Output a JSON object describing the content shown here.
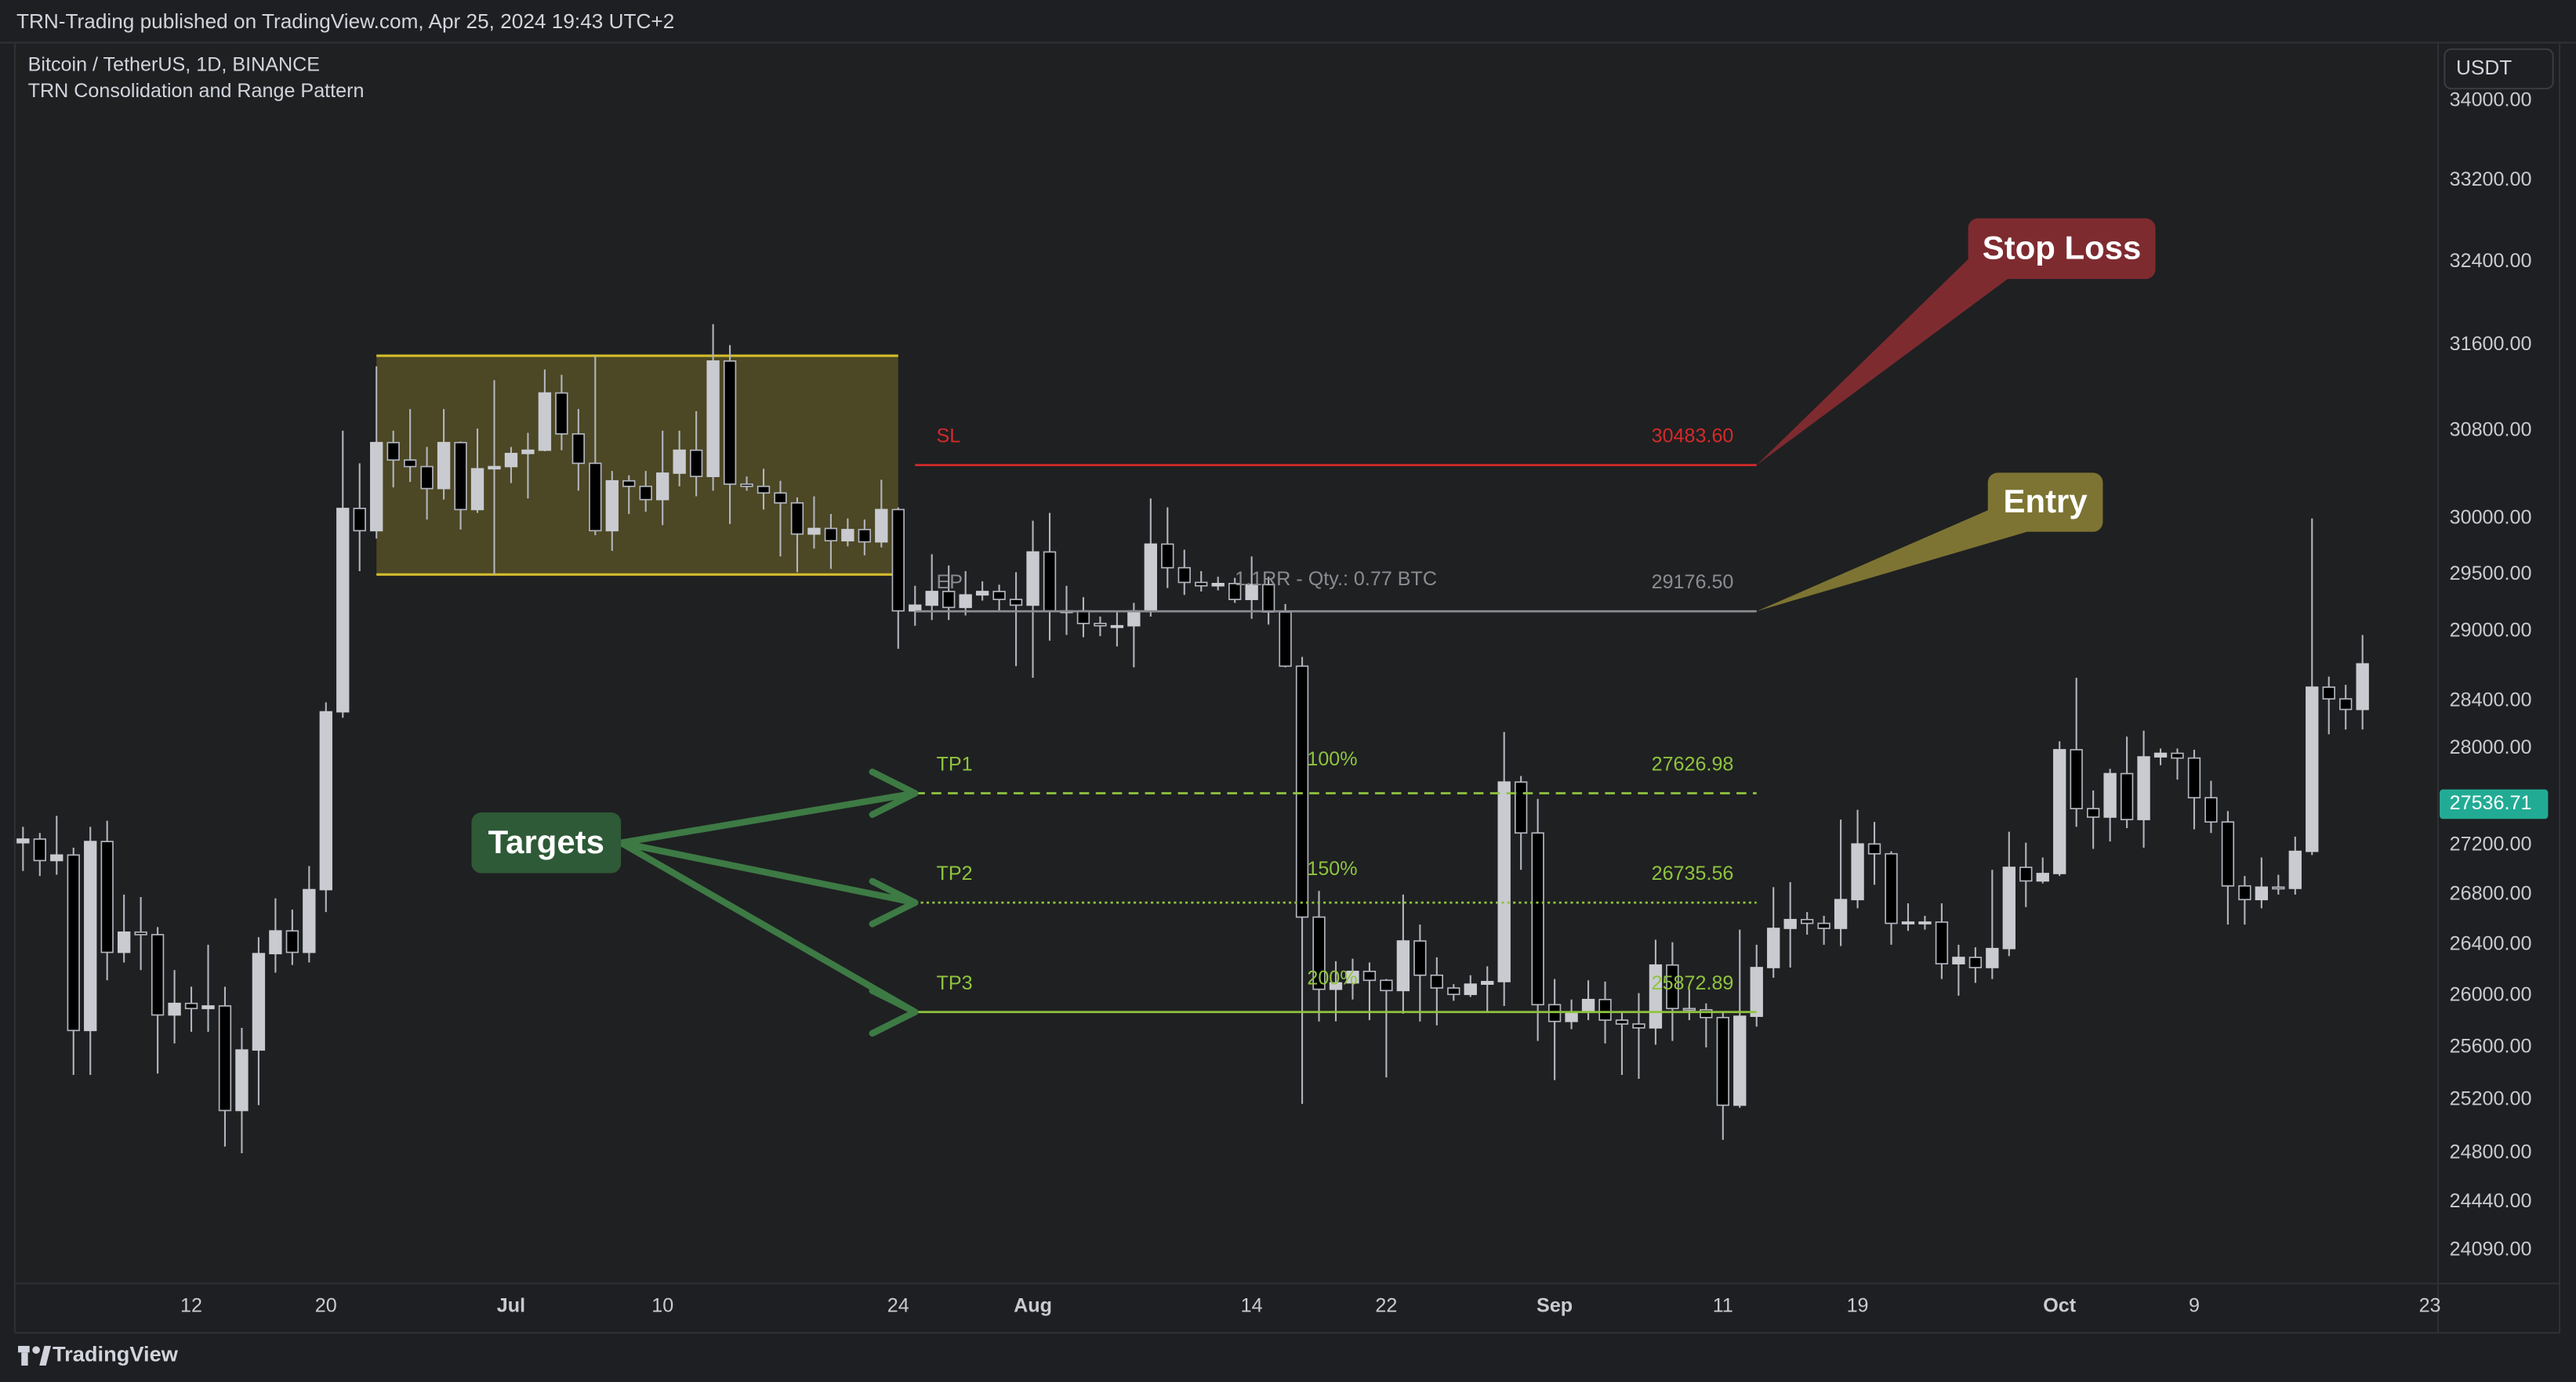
{
  "header": {
    "publisher": "TRN-Trading published on TradingView.com, Apr 25, 2024 19:43 UTC+2"
  },
  "chart_data": {
    "type": "candlestick",
    "title": "Bitcoin / TetherUS, 1D, BINANCE",
    "subtitle": "TRN Consolidation and Range Pattern",
    "categories": [
      null,
      null,
      null,
      null,
      null,
      null,
      null,
      null,
      null,
      null,
      "12",
      null,
      null,
      null,
      null,
      null,
      null,
      null,
      "20",
      null,
      null,
      null,
      null,
      null,
      null,
      null,
      null,
      null,
      null,
      "Jul",
      null,
      null,
      null,
      null,
      null,
      null,
      null,
      null,
      "10",
      null,
      null,
      null,
      null,
      null,
      null,
      null,
      null,
      null,
      null,
      null,
      null,
      null,
      "24",
      null,
      null,
      null,
      null,
      null,
      null,
      null,
      "Aug",
      null,
      null,
      null,
      null,
      null,
      null,
      null,
      null,
      null,
      null,
      null,
      null,
      "14",
      null,
      null,
      null,
      null,
      null,
      null,
      null,
      "22",
      null,
      null,
      null,
      null,
      null,
      null,
      null,
      null,
      null,
      "Sep",
      null,
      null,
      null,
      null,
      null,
      null,
      null,
      null,
      null,
      "11",
      null,
      null,
      null,
      null,
      null,
      null,
      null,
      "19",
      null,
      null,
      null,
      null,
      null,
      null,
      null,
      null,
      null,
      null,
      null,
      "Oct",
      null,
      null,
      null,
      null,
      null,
      null,
      null,
      "9",
      null,
      null,
      null,
      null,
      null,
      null,
      null,
      null,
      null,
      null,
      null,
      null,
      null,
      "23"
    ],
    "open": [
      27220,
      27250,
      27075,
      27120,
      25730,
      27230,
      26340,
      26500,
      26480,
      25850,
      25940,
      25900,
      25920,
      25120,
      25580,
      26330,
      26510,
      26340,
      26840,
      28310,
      30090,
      29890,
      30690,
      30530,
      30470,
      30270,
      30690,
      30080,
      30450,
      30470,
      30590,
      30620,
      31150,
      30770,
      30500,
      29890,
      30340,
      30290,
      30170,
      30410,
      30620,
      30380,
      31450,
      30310,
      30290,
      30230,
      30140,
      29860,
      29910,
      29800,
      29900,
      29790,
      30080,
      29180,
      29230,
      29350,
      29210,
      29320,
      29350,
      29280,
      29230,
      29700,
      29180,
      29180,
      29070,
      29050,
      29050,
      29180,
      29770,
      29560,
      29430,
      29400,
      29420,
      29280,
      29410,
      29170,
      28700,
      26620,
      26050,
      26100,
      26190,
      26120,
      26040,
      26430,
      26160,
      26060,
      26010,
      26090,
      26110,
      27720,
      27300,
      25930,
      25800,
      25870,
      25970,
      25810,
      25780,
      25750,
      26240,
      25900,
      25890,
      25830,
      25160,
      25840,
      26220,
      26530,
      26600,
      26570,
      26530,
      26760,
      27210,
      27130,
      26570,
      26580,
      26580,
      26250,
      26300,
      26220,
      26370,
      27020,
      26910,
      26970,
      27990,
      27500,
      27430,
      27790,
      27410,
      27930,
      27960,
      27920,
      27590,
      27390,
      26870,
      26760,
      26860,
      26850,
      27150,
      28520,
      28420,
      28330,
      null,
      null,
      null,
      null
    ],
    "high": [
      27350,
      27300,
      27440,
      27180,
      27350,
      27400,
      26800,
      26780,
      26540,
      26200,
      26070,
      26400,
      26070,
      25750,
      26460,
      26770,
      26680,
      27030,
      28390,
      30800,
      30500,
      31400,
      30800,
      31000,
      30650,
      31000,
      30700,
      30820,
      31270,
      30650,
      30780,
      31370,
      31320,
      31000,
      31500,
      30430,
      30390,
      30430,
      30800,
      30800,
      30980,
      31800,
      31600,
      30380,
      30450,
      30340,
      30190,
      30200,
      30040,
      30000,
      29990,
      30350,
      30100,
      29400,
      29680,
      29580,
      29530,
      29440,
      29410,
      29520,
      29980,
      30050,
      29400,
      29300,
      29130,
      29170,
      29250,
      30180,
      30100,
      29720,
      29530,
      29480,
      29470,
      29660,
      29480,
      29240,
      28780,
      26830,
      26270,
      26290,
      26260,
      26130,
      26800,
      26560,
      26300,
      26090,
      26160,
      26230,
      28140,
      27770,
      27580,
      26130,
      25970,
      26120,
      26110,
      25880,
      26020,
      26440,
      26420,
      26050,
      25940,
      25880,
      26520,
      26400,
      26860,
      26900,
      26660,
      26630,
      27410,
      27490,
      27390,
      27150,
      26730,
      26630,
      26730,
      26400,
      26380,
      27000,
      27310,
      27220,
      27100,
      28060,
      28600,
      27650,
      27830,
      28100,
      28150,
      28000,
      28000,
      27990,
      27730,
      27480,
      26950,
      27100,
      26960,
      27270,
      30000,
      28610,
      28540,
      28970,
      null,
      null,
      null,
      null
    ],
    "low": [
      26990,
      26950,
      26960,
      25390,
      25390,
      26120,
      26260,
      26200,
      25400,
      25630,
      25720,
      25720,
      24850,
      24800,
      25160,
      26180,
      26240,
      26260,
      26660,
      28260,
      29530,
      29820,
      30280,
      30330,
      29990,
      30170,
      29900,
      30050,
      29500,
      30320,
      30180,
      30610,
      30620,
      30250,
      29850,
      29710,
      30040,
      30060,
      29940,
      30290,
      30200,
      30250,
      29950,
      30250,
      30080,
      29660,
      29520,
      29730,
      29550,
      29750,
      29670,
      29740,
      28850,
      29050,
      29100,
      29100,
      29140,
      29270,
      29180,
      28700,
      28600,
      28920,
      28970,
      28950,
      28960,
      28870,
      28690,
      29130,
      29380,
      29320,
      29350,
      29360,
      29250,
      29110,
      29060,
      28690,
      25170,
      25800,
      25800,
      25970,
      25810,
      25370,
      25860,
      25800,
      25770,
      25960,
      25990,
      25880,
      25920,
      27000,
      25650,
      25350,
      25740,
      25810,
      25630,
      25390,
      25360,
      25620,
      25650,
      25810,
      25600,
      24900,
      25140,
      25760,
      26140,
      26220,
      26480,
      26400,
      26390,
      26690,
      26880,
      26400,
      26510,
      26520,
      26130,
      26000,
      26100,
      26130,
      26310,
      26700,
      26890,
      26950,
      27350,
      27170,
      27230,
      27340,
      27180,
      27860,
      27740,
      27330,
      27300,
      26560,
      26560,
      26690,
      26800,
      26800,
      27120,
      28120,
      28160,
      28160,
      null,
      null,
      null,
      null
    ],
    "close": [
      27250,
      27075,
      27120,
      25730,
      27230,
      26340,
      26500,
      26480,
      25850,
      25940,
      25900,
      25920,
      25120,
      25580,
      26330,
      26510,
      26340,
      26840,
      28310,
      30090,
      29890,
      30690,
      30530,
      30470,
      30270,
      30690,
      30080,
      30450,
      30470,
      30590,
      30620,
      31150,
      30770,
      30500,
      29890,
      30340,
      30290,
      30170,
      30410,
      30620,
      30380,
      31450,
      30310,
      30290,
      30230,
      30140,
      29860,
      29910,
      29800,
      29900,
      29790,
      30080,
      29180,
      29230,
      29350,
      29210,
      29320,
      29350,
      29280,
      29230,
      29700,
      29180,
      29180,
      29070,
      29050,
      29050,
      29180,
      29770,
      29560,
      29430,
      29400,
      29420,
      29280,
      29410,
      29170,
      28700,
      26620,
      26050,
      26100,
      26190,
      26120,
      26040,
      26430,
      26160,
      26060,
      26010,
      26090,
      26110,
      27720,
      27300,
      25930,
      25800,
      25870,
      25970,
      25810,
      25780,
      25750,
      26240,
      25900,
      25890,
      25830,
      25160,
      25840,
      26220,
      26530,
      26600,
      26570,
      26530,
      26760,
      27210,
      27130,
      26570,
      26580,
      26580,
      26250,
      26300,
      26220,
      26370,
      27020,
      26910,
      26970,
      27990,
      27500,
      27430,
      27790,
      27410,
      27930,
      27960,
      27920,
      27590,
      27390,
      26870,
      26760,
      26860,
      26850,
      27150,
      28520,
      28420,
      28330,
      28720,
      null,
      null,
      null,
      null
    ],
    "up_color": "#c9cbd1",
    "down_color": "#000000",
    "wick_color": "#b2b5be",
    "ylim": [
      23850,
      34600
    ],
    "log_scale": true,
    "grid": false,
    "yticks": [
      {
        "value": 34000,
        "label": "34000.00"
      },
      {
        "value": 33200,
        "label": "33200.00"
      },
      {
        "value": 32400,
        "label": "32400.00"
      },
      {
        "value": 31600,
        "label": "31600.00"
      },
      {
        "value": 30800,
        "label": "30800.00"
      },
      {
        "value": 30000,
        "label": "30000.00"
      },
      {
        "value": 29500,
        "label": "29500.00"
      },
      {
        "value": 29000,
        "label": "29000.00"
      },
      {
        "value": 28400,
        "label": "28400.00"
      },
      {
        "value": 28000,
        "label": "28000.00"
      },
      {
        "value": 27200,
        "label": "27200.00"
      },
      {
        "value": 26800,
        "label": "26800.00"
      },
      {
        "value": 26400,
        "label": "26400.00"
      },
      {
        "value": 26000,
        "label": "26000.00"
      },
      {
        "value": 25600,
        "label": "25600.00"
      },
      {
        "value": 25200,
        "label": "25200.00"
      },
      {
        "value": 24800,
        "label": "24800.00"
      },
      {
        "value": 24440,
        "label": "24440.00"
      },
      {
        "value": 24090,
        "label": "24090.00"
      }
    ],
    "currency": "USDT",
    "last_price": 27536.71,
    "last_price_label": "27536.71",
    "last_price_color": "#22ab94",
    "range_box": {
      "x": [
        21,
        52
      ],
      "values": [
        29500,
        31500
      ],
      "color": "#d4bc2c"
    },
    "levels_x": [
      53,
      103
    ],
    "levels": [
      {
        "name": "SL",
        "value": 30483.6,
        "value_label": "30483.60",
        "color": "#d42a2a",
        "style": "solid"
      },
      {
        "name": "EP",
        "value": 29176.5,
        "value_label": "29176.50",
        "color": "#8a8c92",
        "style": "solid",
        "note": "1.1RR - Qty.: 0.77 BTC"
      },
      {
        "name": "TP1",
        "value": 27626.98,
        "value_label": "27626.98",
        "color": "#8fc43e",
        "style": "dashed",
        "percent": "100%"
      },
      {
        "name": "TP2",
        "value": 26735.56,
        "value_label": "26735.56",
        "color": "#8fc43e",
        "style": "dotted",
        "percent": "150%"
      },
      {
        "name": "TP3",
        "value": 25872.89,
        "value_label": "25872.89",
        "color": "#8fc43e",
        "style": "solid",
        "percent": "200%"
      }
    ],
    "callouts": [
      {
        "text": "Stop Loss",
        "color": "#7e2b30"
      },
      {
        "text": "Entry",
        "color": "#7d7433"
      },
      {
        "text": "Targets",
        "color": "#2e5a37"
      }
    ]
  },
  "footer": {
    "brand": "TradingView"
  }
}
